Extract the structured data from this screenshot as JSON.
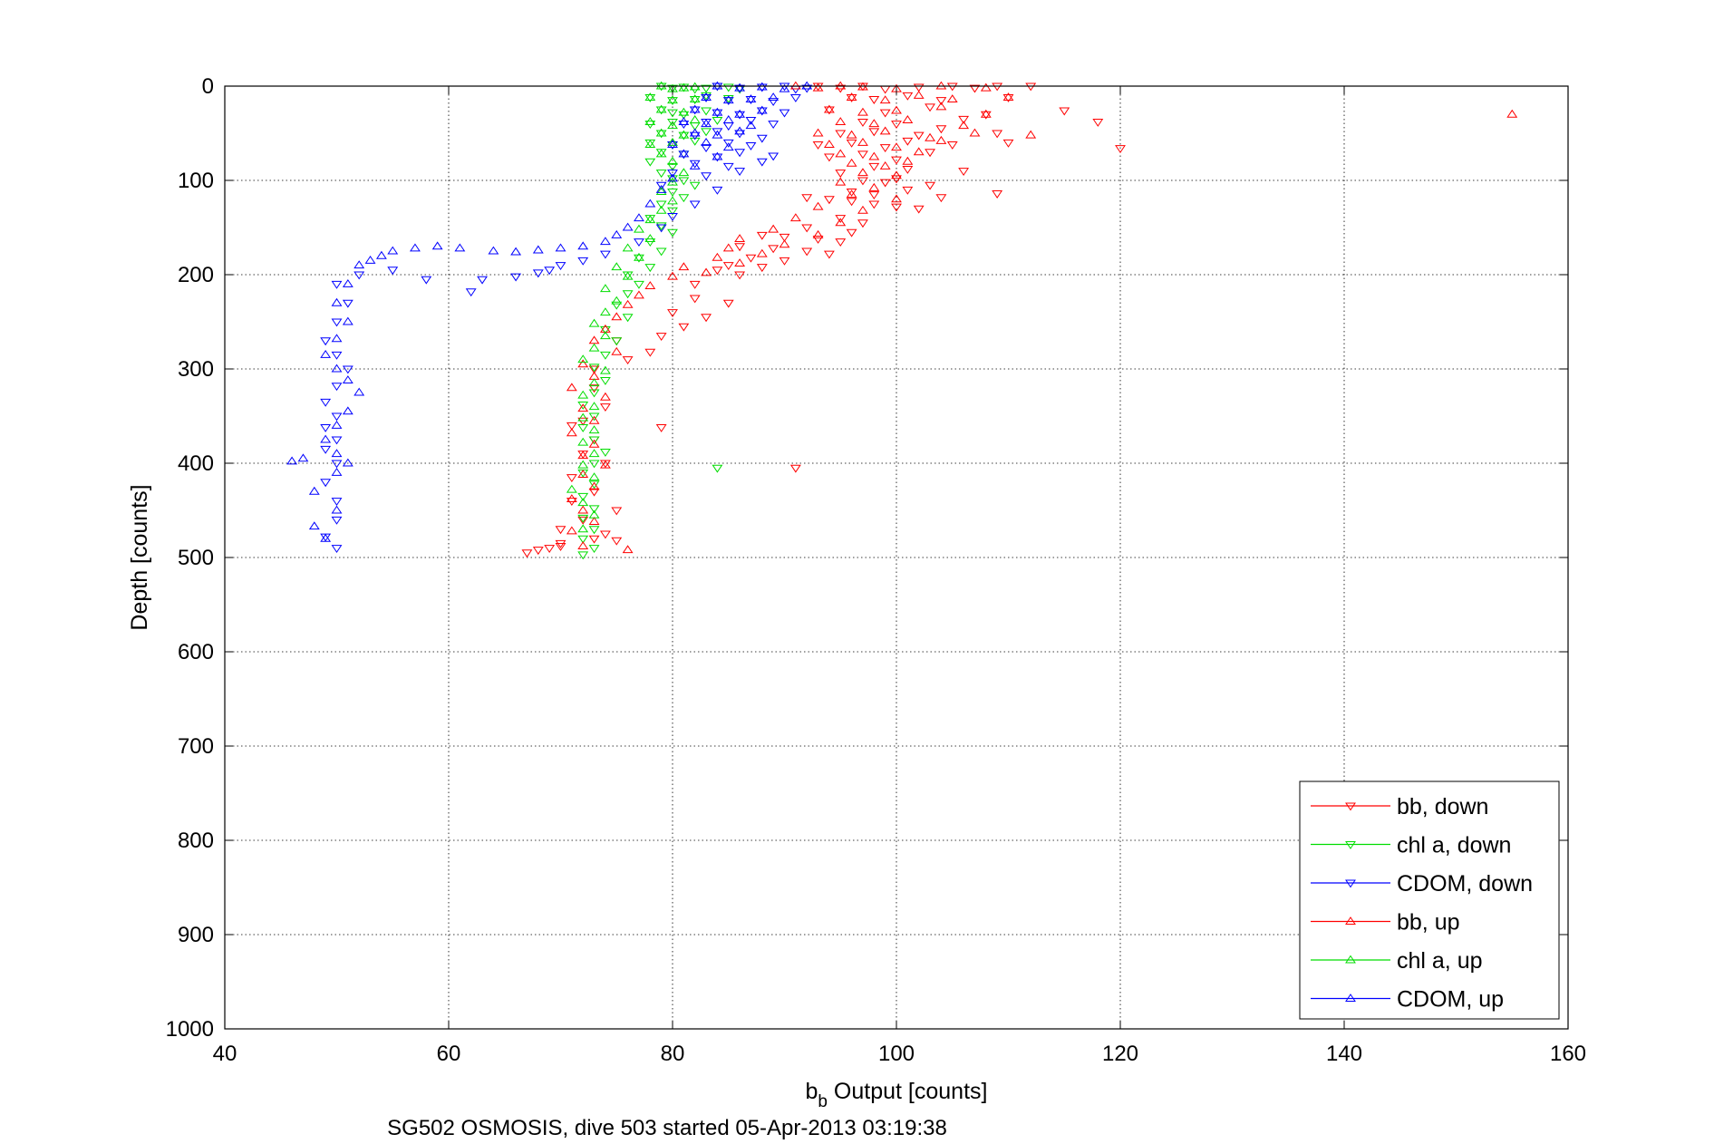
{
  "chart_data": {
    "type": "scatter",
    "title": "",
    "caption": "SG502 OSMOSIS, dive 503 started 05-Apr-2013 03:19:38",
    "xlabel": {
      "main": "b",
      "sub": "b",
      "rest": " Output [counts]"
    },
    "ylabel": "Depth [counts]",
    "xlim": [
      40,
      160
    ],
    "ylim": [
      0,
      1000
    ],
    "y_reversed": true,
    "grid": true,
    "grid_style": "dotted",
    "legend_position": "lower-right",
    "xticks": [
      40,
      60,
      80,
      100,
      120,
      140,
      160
    ],
    "yticks": [
      0,
      100,
      200,
      300,
      400,
      500,
      600,
      700,
      800,
      900,
      1000
    ],
    "series": [
      {
        "name": "bb, down",
        "color": "#ff0000",
        "marker": "triangle-down",
        "x": [
          93,
          95,
          97,
          99,
          102,
          105,
          107,
          109,
          112,
          96,
          98,
          101,
          104,
          110,
          94,
          99,
          103,
          108,
          115,
          97,
          100,
          106,
          118,
          95,
          98,
          102,
          104,
          109,
          93,
          96,
          99,
          101,
          105,
          110,
          120,
          94,
          97,
          100,
          103,
          98,
          101,
          95,
          106,
          97,
          99,
          100,
          103,
          96,
          98,
          101,
          104,
          109,
          92,
          94,
          96,
          98,
          100,
          102,
          95,
          97,
          92,
          96,
          88,
          90,
          93,
          95,
          86,
          89,
          92,
          94,
          87,
          90,
          85,
          88,
          84,
          86,
          82,
          82,
          85,
          80,
          83,
          81,
          79,
          75,
          78,
          76,
          73,
          73,
          74,
          72,
          71,
          73,
          72,
          74,
          71,
          73,
          79,
          71,
          75,
          72,
          70,
          74,
          73,
          70,
          91,
          70,
          69,
          68,
          67,
          75
        ],
        "y": [
          0,
          2,
          0,
          3,
          1,
          0,
          2,
          0,
          0,
          12,
          14,
          10,
          15,
          12,
          25,
          28,
          22,
          30,
          26,
          38,
          40,
          35,
          38,
          50,
          48,
          52,
          45,
          50,
          62,
          60,
          65,
          58,
          62,
          60,
          66,
          75,
          72,
          78,
          70,
          85,
          88,
          92,
          90,
          100,
          102,
          98,
          105,
          112,
          115,
          110,
          118,
          114,
          118,
          120,
          122,
          125,
          128,
          130,
          140,
          145,
          150,
          155,
          158,
          160,
          162,
          165,
          170,
          172,
          175,
          178,
          182,
          185,
          190,
          192,
          195,
          200,
          210,
          225,
          230,
          240,
          245,
          255,
          265,
          270,
          282,
          290,
          300,
          320,
          340,
          355,
          360,
          375,
          390,
          400,
          415,
          430,
          362,
          440,
          450,
          460,
          470,
          475,
          480,
          485,
          405,
          488,
          490,
          492,
          495,
          482
        ]
      },
      {
        "name": "chl a, down",
        "color": "#00dd00",
        "marker": "triangle-down",
        "x": [
          79,
          80,
          81,
          82,
          83,
          84,
          85,
          86,
          78,
          80,
          82,
          83,
          85,
          79,
          80,
          81,
          83,
          78,
          80,
          82,
          84,
          79,
          81,
          83,
          78,
          80,
          82,
          79,
          81,
          78,
          80,
          79,
          80,
          81,
          82,
          80,
          81,
          79,
          80,
          78,
          79,
          80,
          78,
          79,
          77,
          78,
          76,
          77,
          76,
          75,
          76,
          74,
          75,
          74,
          73,
          74,
          73,
          72,
          73,
          72,
          73,
          74,
          73,
          72,
          73,
          72,
          73,
          84,
          72,
          73,
          72,
          73,
          72
        ],
        "y": [
          0,
          2,
          1,
          3,
          2,
          0,
          1,
          3,
          12,
          15,
          14,
          10,
          13,
          25,
          28,
          30,
          26,
          40,
          38,
          42,
          36,
          50,
          52,
          48,
          60,
          62,
          58,
          70,
          72,
          80,
          85,
          92,
          98,
          100,
          105,
          112,
          118,
          125,
          132,
          140,
          148,
          155,
          165,
          175,
          182,
          192,
          200,
          210,
          220,
          232,
          245,
          258,
          270,
          285,
          298,
          312,
          325,
          338,
          350,
          362,
          375,
          388,
          400,
          410,
          422,
          435,
          448,
          405,
          458,
          470,
          480,
          490,
          497
        ]
      },
      {
        "name": "CDOM, down",
        "color": "#0000ff",
        "marker": "triangle-down",
        "x": [
          84,
          86,
          88,
          90,
          91,
          92,
          83,
          85,
          87,
          89,
          91,
          82,
          84,
          86,
          88,
          90,
          81,
          83,
          85,
          87,
          89,
          82,
          84,
          86,
          88,
          80,
          83,
          85,
          87,
          81,
          84,
          86,
          89,
          82,
          85,
          88,
          80,
          83,
          86,
          79,
          84,
          82,
          80,
          79,
          77,
          74,
          72,
          70,
          69,
          68,
          66,
          63,
          62,
          58,
          55,
          52,
          50,
          51,
          50,
          49,
          50,
          51,
          50,
          49,
          50,
          49,
          50,
          49,
          50,
          49,
          50,
          50,
          49,
          50
        ],
        "y": [
          0,
          2,
          1,
          0,
          3,
          2,
          12,
          15,
          14,
          16,
          12,
          25,
          28,
          30,
          26,
          28,
          40,
          38,
          42,
          36,
          40,
          52,
          48,
          50,
          55,
          62,
          65,
          60,
          63,
          72,
          75,
          70,
          74,
          82,
          85,
          80,
          92,
          95,
          90,
          105,
          110,
          125,
          138,
          150,
          165,
          178,
          185,
          190,
          195,
          198,
          202,
          205,
          218,
          205,
          195,
          200,
          210,
          230,
          250,
          270,
          285,
          300,
          318,
          335,
          350,
          362,
          375,
          385,
          400,
          420,
          440,
          460,
          478,
          490
        ]
      },
      {
        "name": "bb, up",
        "color": "#ff0000",
        "marker": "triangle-up",
        "x": [
          91,
          93,
          95,
          97,
          100,
          104,
          108,
          96,
          99,
          102,
          105,
          110,
          155,
          94,
          97,
          100,
          104,
          108,
          95,
          98,
          101,
          106,
          93,
          96,
          99,
          103,
          107,
          112,
          94,
          97,
          100,
          104,
          95,
          98,
          102,
          96,
          99,
          101,
          97,
          100,
          95,
          98,
          96,
          100,
          93,
          97,
          91,
          95,
          89,
          93,
          86,
          90,
          85,
          88,
          84,
          86,
          81,
          83,
          80,
          78,
          77,
          76,
          75,
          74,
          73,
          75,
          72,
          73,
          71,
          74,
          72,
          73,
          71,
          73,
          72,
          74,
          72,
          73,
          71,
          72,
          73,
          71,
          72,
          76
        ],
        "y": [
          0,
          2,
          0,
          1,
          3,
          0,
          2,
          12,
          15,
          10,
          14,
          12,
          30,
          25,
          28,
          26,
          22,
          30,
          38,
          40,
          36,
          42,
          50,
          52,
          48,
          55,
          50,
          52,
          62,
          60,
          65,
          58,
          72,
          75,
          70,
          82,
          85,
          80,
          92,
          95,
          102,
          108,
          115,
          120,
          128,
          132,
          140,
          145,
          152,
          158,
          162,
          168,
          172,
          178,
          182,
          188,
          192,
          198,
          202,
          212,
          222,
          232,
          245,
          258,
          270,
          282,
          295,
          308,
          320,
          330,
          342,
          355,
          368,
          380,
          392,
          402,
          412,
          425,
          438,
          450,
          462,
          472,
          488,
          492
        ]
      },
      {
        "name": "chl a, up",
        "color": "#00dd00",
        "marker": "triangle-up",
        "x": [
          79,
          80,
          81,
          82,
          78,
          80,
          82,
          79,
          81,
          78,
          80,
          82,
          79,
          81,
          78,
          80,
          79,
          80,
          81,
          80,
          79,
          80,
          79,
          78,
          77,
          78,
          76,
          77,
          75,
          76,
          74,
          75,
          74,
          73,
          74,
          73,
          72,
          74,
          73,
          72,
          73,
          72,
          73,
          72,
          73,
          72,
          73,
          71,
          72,
          73,
          72
        ],
        "y": [
          0,
          3,
          2,
          1,
          12,
          15,
          14,
          25,
          28,
          38,
          42,
          36,
          50,
          52,
          62,
          60,
          72,
          80,
          92,
          102,
          112,
          122,
          132,
          142,
          152,
          162,
          172,
          182,
          192,
          202,
          215,
          228,
          240,
          252,
          265,
          278,
          290,
          302,
          315,
          328,
          340,
          352,
          365,
          378,
          390,
          402,
          415,
          428,
          442,
          455,
          470
        ]
      },
      {
        "name": "CDOM, up",
        "color": "#0000ff",
        "marker": "triangle-up",
        "x": [
          84,
          86,
          88,
          90,
          92,
          83,
          85,
          87,
          89,
          82,
          84,
          86,
          88,
          81,
          83,
          85,
          87,
          82,
          84,
          86,
          80,
          83,
          85,
          81,
          84,
          82,
          80,
          79,
          78,
          77,
          76,
          75,
          74,
          72,
          70,
          68,
          66,
          64,
          61,
          59,
          57,
          55,
          54,
          53,
          52,
          51,
          50,
          51,
          50,
          49,
          50,
          51,
          52,
          51,
          50,
          49,
          50,
          51,
          50,
          48,
          46,
          47,
          50,
          49,
          48
        ],
        "y": [
          0,
          2,
          1,
          3,
          0,
          12,
          15,
          14,
          12,
          25,
          28,
          30,
          26,
          38,
          40,
          36,
          42,
          50,
          52,
          48,
          62,
          60,
          65,
          72,
          75,
          85,
          98,
          110,
          125,
          140,
          150,
          158,
          165,
          170,
          172,
          174,
          176,
          175,
          172,
          170,
          172,
          175,
          180,
          185,
          190,
          210,
          230,
          250,
          268,
          285,
          300,
          312,
          325,
          345,
          360,
          375,
          390,
          400,
          410,
          430,
          398,
          395,
          450,
          480,
          467
        ]
      }
    ]
  }
}
